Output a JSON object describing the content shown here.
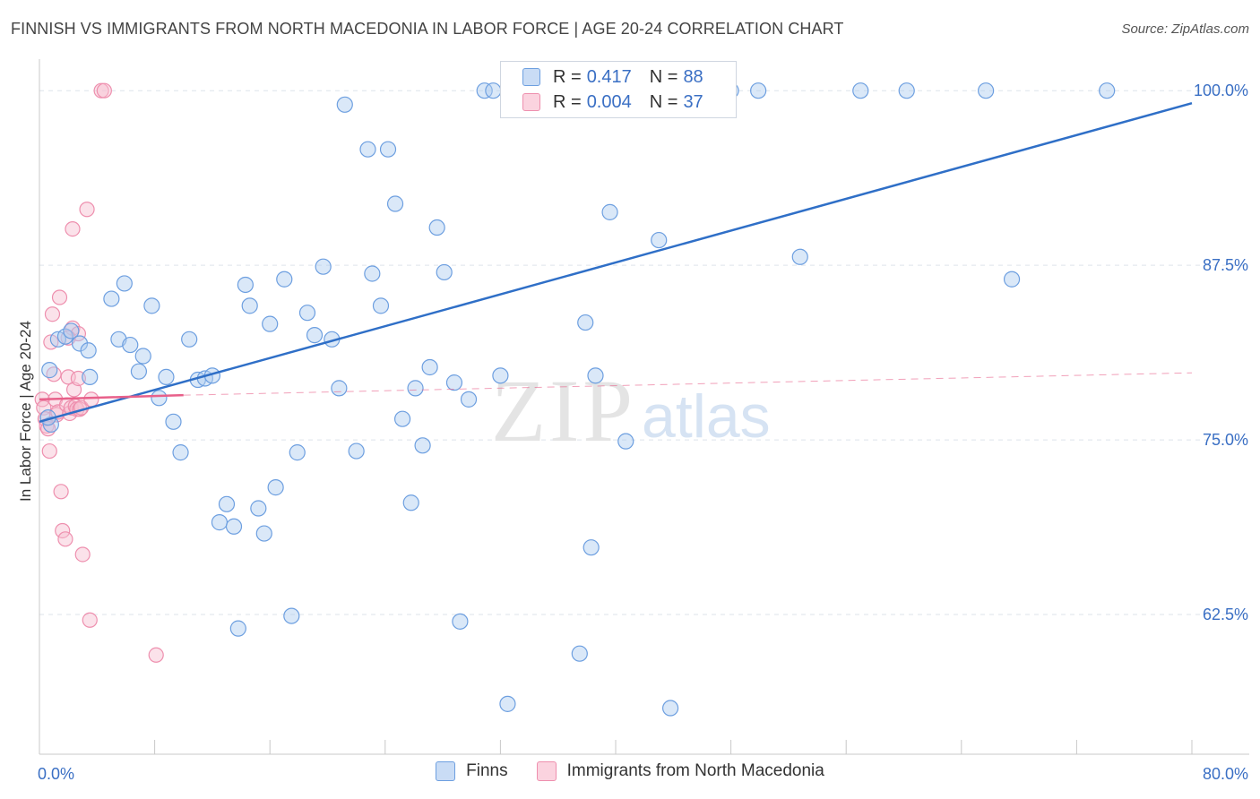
{
  "title": "FINNISH VS IMMIGRANTS FROM NORTH MACEDONIA IN LABOR FORCE | AGE 20-24 CORRELATION CHART",
  "source": "Source: ZipAtlas.com",
  "watermark": {
    "zip": "ZIP",
    "atlas": "atlas"
  },
  "legend": {
    "finns": {
      "r_label": "R =",
      "r_value": "0.417",
      "n_label": "N =",
      "n_value": "88"
    },
    "mac": {
      "r_label": "R =",
      "r_value": "0.004",
      "n_label": "N =",
      "n_value": "37"
    }
  },
  "colors": {
    "finns_fill": "#aecbf0",
    "finns_stroke": "#6d9fe0",
    "finns_line": "#2f6fc7",
    "mac_fill": "#f7bfd0",
    "mac_stroke": "#ee8fae",
    "mac_line": "#e8608a",
    "grid": "#dde3ea",
    "axis_label": "#3a6fc4"
  },
  "chart_data": {
    "type": "scatter",
    "title": "FINNISH VS IMMIGRANTS FROM NORTH MACEDONIA IN LABOR FORCE | AGE 20-24 CORRELATION CHART",
    "xlabel": "",
    "ylabel": "In Labor Force | Age 20-24",
    "xlim": [
      0,
      80
    ],
    "ylim": [
      52.5,
      102.0
    ],
    "x_tick_labels": [
      {
        "value": 0,
        "label": "0.0%"
      },
      {
        "value": 80,
        "label": "80.0%"
      }
    ],
    "y_tick_labels": [
      {
        "value": 100,
        "label": "100.0%"
      },
      {
        "value": 87.5,
        "label": "87.5%"
      },
      {
        "value": 75,
        "label": "75.0%"
      },
      {
        "value": 62.5,
        "label": "62.5%"
      }
    ],
    "grid": true,
    "series": [
      {
        "name": "Finns",
        "trend": {
          "x": [
            0,
            80
          ],
          "y": [
            76.3,
            99.1
          ]
        },
        "points": [
          [
            0.8,
            76.1
          ],
          [
            0.7,
            80.0
          ],
          [
            1.3,
            82.2
          ],
          [
            1.8,
            82.4
          ],
          [
            2.2,
            82.8
          ],
          [
            2.8,
            81.9
          ],
          [
            3.4,
            81.4
          ],
          [
            3.5,
            79.5
          ],
          [
            5.0,
            85.1
          ],
          [
            5.5,
            82.2
          ],
          [
            5.9,
            86.2
          ],
          [
            6.3,
            81.8
          ],
          [
            6.9,
            79.9
          ],
          [
            7.2,
            81.0
          ],
          [
            7.8,
            84.6
          ],
          [
            8.3,
            78.0
          ],
          [
            8.8,
            79.5
          ],
          [
            9.3,
            76.3
          ],
          [
            9.8,
            74.1
          ],
          [
            10.4,
            82.2
          ],
          [
            11.0,
            79.3
          ],
          [
            11.5,
            79.4
          ],
          [
            12.0,
            79.6
          ],
          [
            12.5,
            69.1
          ],
          [
            13.0,
            70.4
          ],
          [
            13.5,
            68.8
          ],
          [
            13.8,
            61.5
          ],
          [
            14.3,
            86.1
          ],
          [
            14.6,
            84.6
          ],
          [
            15.2,
            70.1
          ],
          [
            15.6,
            68.3
          ],
          [
            16.0,
            83.3
          ],
          [
            16.4,
            71.6
          ],
          [
            17.0,
            86.5
          ],
          [
            17.5,
            62.4
          ],
          [
            17.9,
            74.1
          ],
          [
            18.6,
            84.1
          ],
          [
            19.1,
            82.5
          ],
          [
            19.7,
            87.4
          ],
          [
            20.3,
            82.2
          ],
          [
            20.8,
            78.7
          ],
          [
            21.2,
            99.0
          ],
          [
            22.0,
            74.2
          ],
          [
            22.8,
            95.8
          ],
          [
            23.1,
            86.9
          ],
          [
            23.7,
            84.6
          ],
          [
            24.2,
            95.8
          ],
          [
            24.7,
            91.9
          ],
          [
            25.2,
            76.5
          ],
          [
            25.8,
            70.5
          ],
          [
            26.1,
            78.7
          ],
          [
            26.6,
            74.6
          ],
          [
            27.1,
            80.2
          ],
          [
            27.6,
            90.2
          ],
          [
            28.1,
            87.0
          ],
          [
            28.8,
            79.1
          ],
          [
            29.2,
            62.0
          ],
          [
            29.8,
            77.9
          ],
          [
            30.9,
            100.0
          ],
          [
            31.5,
            100.0
          ],
          [
            32.0,
            79.6
          ],
          [
            32.5,
            56.1
          ],
          [
            34.0,
            100.0
          ],
          [
            34.5,
            100.0
          ],
          [
            35.0,
            100.0
          ],
          [
            35.8,
            100.0
          ],
          [
            36.4,
            100.0
          ],
          [
            37.5,
            59.7
          ],
          [
            37.9,
            83.4
          ],
          [
            38.3,
            67.3
          ],
          [
            38.6,
            79.6
          ],
          [
            39.6,
            91.3
          ],
          [
            40.7,
            74.9
          ],
          [
            41.5,
            100.0
          ],
          [
            42.0,
            100.0
          ],
          [
            43.0,
            89.3
          ],
          [
            43.8,
            55.8
          ],
          [
            44.7,
            100.0
          ],
          [
            45.6,
            100.0
          ],
          [
            48.0,
            100.0
          ],
          [
            49.9,
            100.0
          ],
          [
            52.8,
            88.1
          ],
          [
            57.0,
            100.0
          ],
          [
            60.2,
            100.0
          ],
          [
            65.7,
            100.0
          ],
          [
            67.5,
            86.5
          ],
          [
            74.1,
            100.0
          ],
          [
            0.6,
            76.6
          ]
        ]
      },
      {
        "name": "Immigrants from North Macedonia",
        "trend": {
          "x": [
            0,
            10
          ],
          "y": [
            77.9,
            78.2
          ]
        },
        "trend_dashed": {
          "x": [
            10,
            80
          ],
          "y": [
            78.2,
            79.8
          ]
        },
        "points": [
          [
            0.2,
            77.9
          ],
          [
            0.3,
            77.3
          ],
          [
            0.4,
            76.5
          ],
          [
            0.5,
            76.0
          ],
          [
            0.6,
            75.8
          ],
          [
            0.7,
            74.2
          ],
          [
            0.8,
            82.0
          ],
          [
            0.9,
            84.0
          ],
          [
            1.0,
            79.7
          ],
          [
            1.1,
            77.9
          ],
          [
            1.2,
            76.8
          ],
          [
            1.3,
            77.0
          ],
          [
            1.4,
            85.2
          ],
          [
            1.5,
            71.3
          ],
          [
            1.6,
            68.5
          ],
          [
            1.8,
            67.9
          ],
          [
            1.9,
            77.5
          ],
          [
            2.0,
            79.5
          ],
          [
            2.1,
            76.9
          ],
          [
            2.2,
            77.3
          ],
          [
            2.3,
            83.0
          ],
          [
            2.4,
            78.6
          ],
          [
            2.5,
            77.4
          ],
          [
            2.6,
            77.2
          ],
          [
            2.7,
            82.6
          ],
          [
            2.8,
            77.2
          ],
          [
            2.9,
            77.3
          ],
          [
            2.0,
            82.3
          ],
          [
            2.3,
            90.1
          ],
          [
            2.7,
            79.4
          ],
          [
            3.0,
            66.8
          ],
          [
            3.3,
            91.5
          ],
          [
            3.5,
            62.1
          ],
          [
            3.6,
            77.9
          ],
          [
            4.3,
            100.0
          ],
          [
            4.5,
            100.0
          ],
          [
            8.1,
            59.6
          ]
        ]
      }
    ]
  },
  "bottom_legend": {
    "finns": "Finns",
    "mac": "Immigrants from North Macedonia"
  }
}
